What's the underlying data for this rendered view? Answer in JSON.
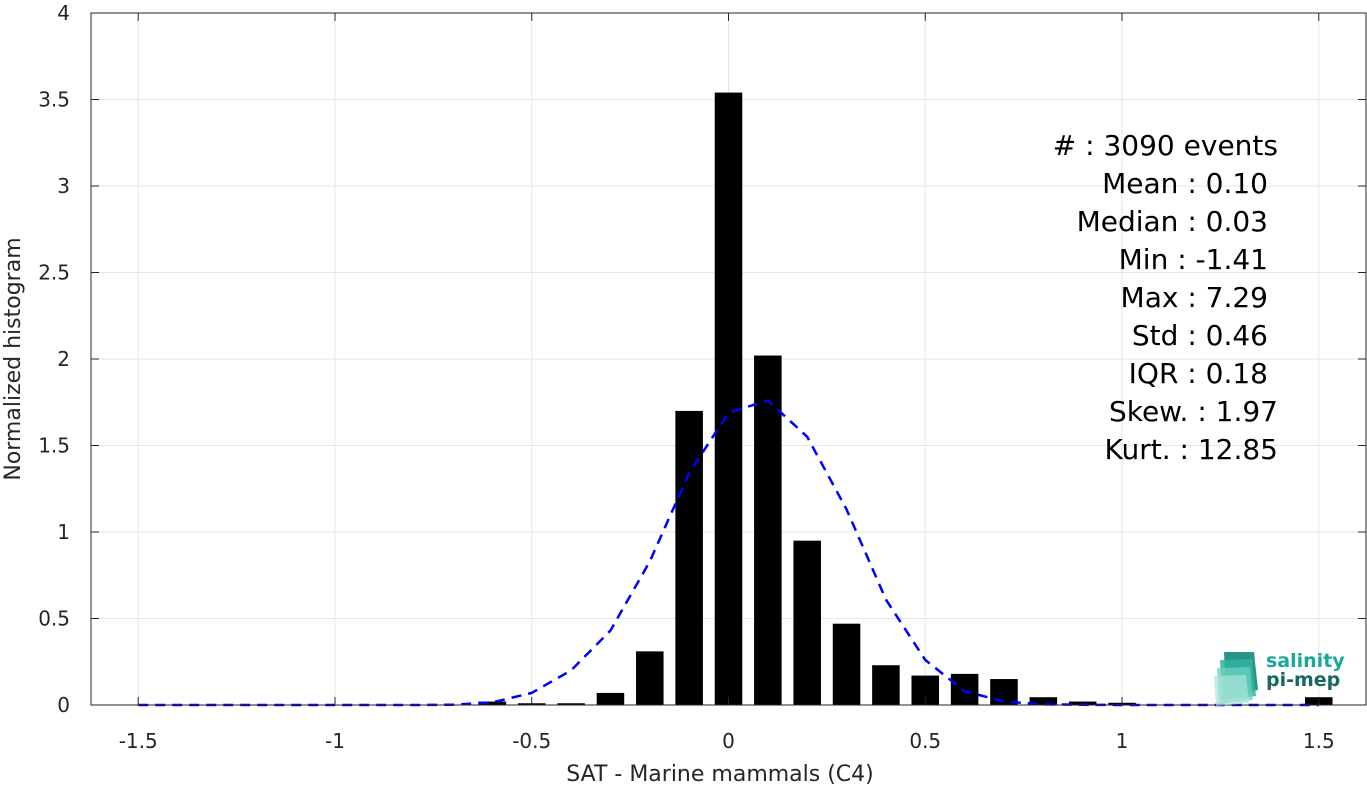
{
  "chart_data": {
    "type": "bar",
    "xlabel": "SAT - Marine mammals (C4)",
    "ylabel": "Normalized histogram",
    "xlim": [
      -1.62,
      1.62
    ],
    "ylim": [
      0,
      4
    ],
    "xticks": [
      -1.5,
      -1,
      -0.5,
      0,
      0.5,
      1,
      1.5
    ],
    "xtick_labels": [
      "-1.5",
      "-1",
      "-0.5",
      "0",
      "0.5",
      "1",
      "1.5"
    ],
    "yticks": [
      0,
      0.5,
      1,
      1.5,
      2,
      2.5,
      3,
      3.5,
      4
    ],
    "ytick_labels": [
      "0",
      "0.5",
      "1",
      "1.5",
      "2",
      "2.5",
      "3",
      "3.5",
      "4"
    ],
    "grid": true,
    "bar_width": 0.07,
    "bars": {
      "x": [
        -0.7,
        -0.6,
        -0.5,
        -0.4,
        -0.3,
        -0.2,
        -0.1,
        0.0,
        0.1,
        0.2,
        0.3,
        0.4,
        0.5,
        0.6,
        0.7,
        0.8,
        0.9,
        1.0,
        1.5
      ],
      "values": [
        0.003,
        0.02,
        0.01,
        0.01,
        0.07,
        0.31,
        1.7,
        3.54,
        2.02,
        0.95,
        0.47,
        0.23,
        0.17,
        0.18,
        0.15,
        0.045,
        0.02,
        0.013,
        0.045
      ],
      "color": "#000000"
    },
    "fit_curve": {
      "style": "dashed",
      "color": "#0000ff",
      "x": [
        -1.5,
        -1.4,
        -1.3,
        -1.2,
        -1.1,
        -1.0,
        -0.9,
        -0.8,
        -0.7,
        -0.6,
        -0.5,
        -0.4,
        -0.3,
        -0.2,
        -0.1,
        0.0,
        0.1,
        0.2,
        0.3,
        0.4,
        0.5,
        0.6,
        0.7,
        0.8,
        0.9,
        1.0,
        1.1,
        1.2,
        1.3,
        1.4,
        1.5
      ],
      "y": [
        0,
        0,
        0,
        0,
        0,
        0,
        0,
        0,
        0.002,
        0.015,
        0.07,
        0.2,
        0.43,
        0.83,
        1.34,
        1.69,
        1.76,
        1.55,
        1.13,
        0.61,
        0.26,
        0.08,
        0.02,
        0.004,
        0.001,
        0,
        0,
        0,
        0,
        0,
        0
      ]
    },
    "stats": [
      "#  : 3090 events",
      "Mean : 0.10",
      "Median : 0.03",
      "Min : -1.41",
      "Max : 7.29",
      "Std : 0.46",
      "IQR : 0.18",
      "Skew. : 1.97",
      "Kurt. : 12.85"
    ]
  },
  "logo": {
    "line1": "salinity",
    "line2": "pi-mep",
    "color1": "#1aa89a",
    "color2": "#17695f"
  }
}
